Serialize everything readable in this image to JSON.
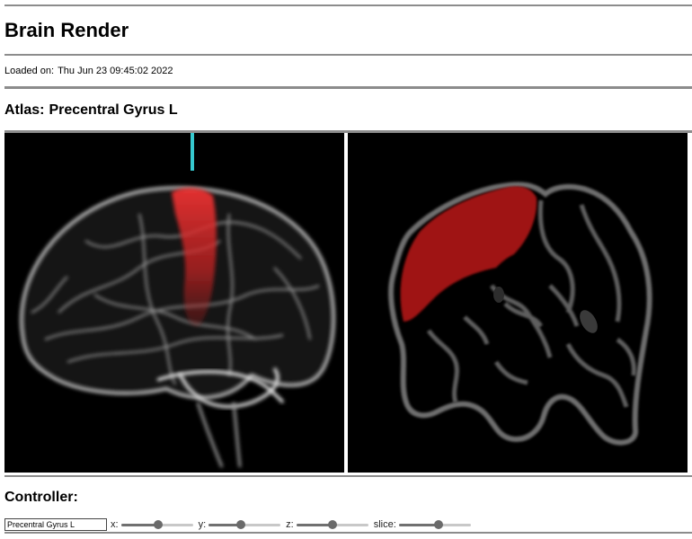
{
  "header": {
    "title": "Brain Render"
  },
  "meta": {
    "loaded_label": "Loaded on:",
    "loaded_date": "Thu Jun 23 09:45:02 2022"
  },
  "atlas": {
    "label": "Atlas:",
    "name": "Precentral Gyrus L"
  },
  "controller": {
    "title": "Controller:",
    "atlas_input_value": "Precentral Gyrus L",
    "sliders": [
      {
        "label": "x:",
        "value": 0.52
      },
      {
        "label": "y:",
        "value": 0.45
      },
      {
        "label": "z:",
        "value": 0.5
      },
      {
        "label": "slice:",
        "value": 0.55
      }
    ]
  },
  "colors": {
    "highlight_region": "#c81919",
    "cursor_marker": "#36c9cf",
    "brain_outline": "#6e6e6e",
    "panel_background": "#000000"
  }
}
